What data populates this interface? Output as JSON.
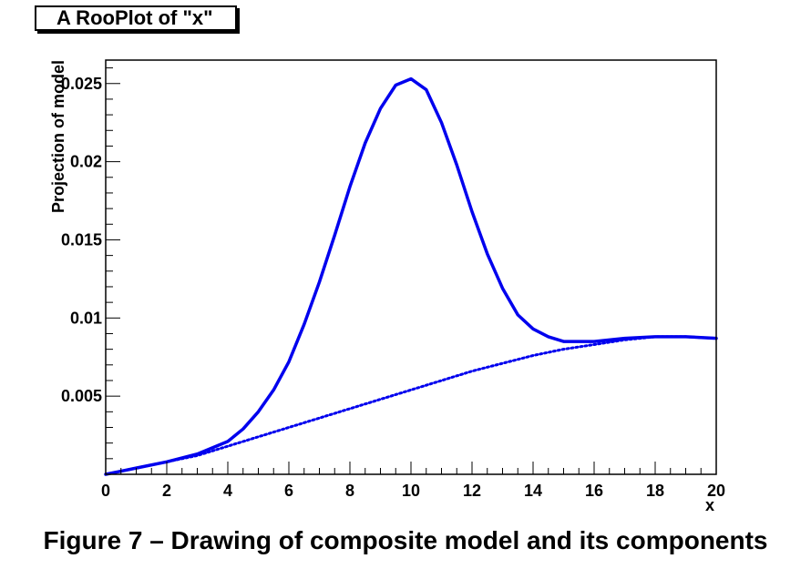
{
  "frame_title": "A RooPlot of \"x\"",
  "caption": "Figure 7 – Drawing of composite model and its components",
  "chart_data": {
    "type": "line",
    "title": "A RooPlot of \"x\"",
    "xlabel": "x",
    "ylabel": "Projection of model",
    "xlim": [
      0,
      20
    ],
    "ylim": [
      0,
      0.0265
    ],
    "x_ticks": [
      "0",
      "2",
      "4",
      "6",
      "8",
      "10",
      "12",
      "14",
      "16",
      "18",
      "20"
    ],
    "y_ticks": [
      "0.005",
      "0.01",
      "0.015",
      "0.02",
      "0.025"
    ],
    "y_tick_values": [
      0.005,
      0.01,
      0.015,
      0.02,
      0.025
    ],
    "grid": false,
    "series": [
      {
        "style": "solid",
        "color": "#0000ee",
        "x": [
          0,
          1,
          2,
          3,
          4,
          4.5,
          5,
          5.5,
          6,
          6.5,
          7,
          7.5,
          8,
          8.5,
          9,
          9.5,
          10,
          10.5,
          11,
          11.5,
          12,
          12.5,
          13,
          13.5,
          14,
          14.5,
          15,
          16,
          17,
          18,
          19,
          20
        ],
        "y": [
          0,
          0.0004,
          0.0008,
          0.0013,
          0.0021,
          0.0029,
          0.004,
          0.0054,
          0.0072,
          0.0096,
          0.0123,
          0.0153,
          0.0184,
          0.0212,
          0.0234,
          0.0249,
          0.0253,
          0.0246,
          0.0225,
          0.0198,
          0.0168,
          0.0141,
          0.0119,
          0.0102,
          0.0093,
          0.0088,
          0.0085,
          0.0085,
          0.0087,
          0.0088,
          0.0088,
          0.0087
        ]
      },
      {
        "style": "dotted",
        "color": "#0000ee",
        "x": [
          0,
          1,
          2,
          3,
          4,
          5,
          6,
          7,
          8,
          9,
          10,
          11,
          12,
          13,
          14,
          15,
          16,
          17,
          18,
          19,
          20
        ],
        "y": [
          0,
          0.0004,
          0.0008,
          0.0012,
          0.0018,
          0.0024,
          0.003,
          0.0036,
          0.0042,
          0.0048,
          0.0054,
          0.006,
          0.0066,
          0.0071,
          0.0076,
          0.008,
          0.0083,
          0.0086,
          0.0088,
          0.0088,
          0.0087
        ]
      }
    ]
  }
}
